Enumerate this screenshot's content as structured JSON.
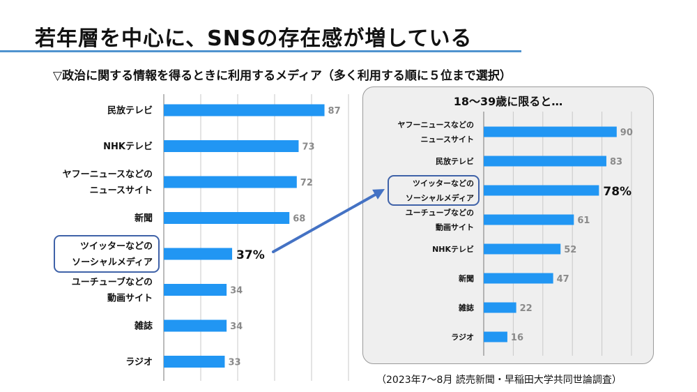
{
  "title": "若年層を中心に、SNSの存在感が増している",
  "subtitle": "▽政治に関する情報を得るときに利用するメディア（多く利用する順に５位まで選択）",
  "source": "（2023年7～8月 読売新聞・早稲田大学共同世論調査）",
  "accent_color": "#2196f3",
  "highlight_border_color": "#3f62a8",
  "arrow_color": "#4472c4",
  "chart_data": [
    {
      "type": "bar",
      "orientation": "horizontal",
      "title": "",
      "categories": [
        [
          "民放テレビ"
        ],
        [
          "NHKテレビ"
        ],
        [
          "ヤフーニュースなどの",
          "ニュースサイト"
        ],
        [
          "新聞"
        ],
        [
          "ツイッターなどの",
          "ソーシャルメディア"
        ],
        [
          "ユーチューブなどの",
          "動画サイト"
        ],
        [
          "雑誌"
        ],
        [
          "ラジオ"
        ]
      ],
      "values": [
        87,
        73,
        72,
        68,
        37,
        34,
        34,
        33
      ],
      "value_labels": [
        "87",
        "73",
        "72",
        "68",
        "37%",
        "34",
        "34",
        "33"
      ],
      "highlight_index": 4,
      "xlim": [
        0,
        100
      ],
      "grid": true
    },
    {
      "type": "bar",
      "orientation": "horizontal",
      "title": "18～39歳に限ると…",
      "categories": [
        [
          "ヤフーニュースなどの",
          "ニュースサイト"
        ],
        [
          "民放テレビ"
        ],
        [
          "ツイッターなどの",
          "ソーシャルメディア"
        ],
        [
          "ユーチューブなどの",
          "動画サイト"
        ],
        [
          "NHKテレビ"
        ],
        [
          "新聞"
        ],
        [
          "雑誌"
        ],
        [
          "ラジオ"
        ]
      ],
      "values": [
        90,
        83,
        78,
        61,
        52,
        47,
        22,
        16
      ],
      "value_labels": [
        "90",
        "83",
        "78%",
        "61",
        "52",
        "47",
        "22",
        "16"
      ],
      "highlight_index": 2,
      "xlim": [
        0,
        100
      ],
      "grid": true
    }
  ]
}
